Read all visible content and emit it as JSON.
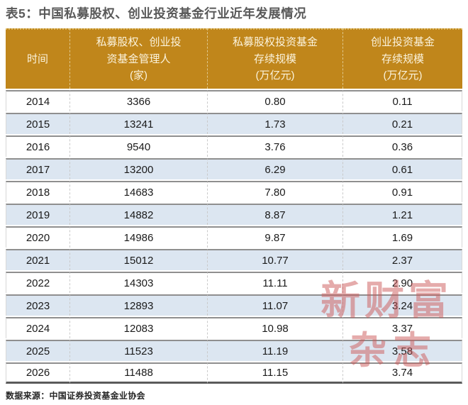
{
  "title": "表5：中国私募股权、创业投资基金行业近年发展情况",
  "source": "数据来源：中国证券投资基金业协会",
  "watermark": {
    "line1": "新财富",
    "line2": "杂志"
  },
  "colors": {
    "header_bg": "#C0861B",
    "header_text": "#FBF3DC",
    "alt_row_bg": "#DCE6F1",
    "title_text": "#595959",
    "row_border": "#8F8F8F",
    "watermark_red": "#CB5858"
  },
  "header": {
    "columns": [
      {
        "lines": [
          "时间"
        ]
      },
      {
        "lines": [
          "私募股权、创业投",
          "资基金管理人",
          "(家)"
        ]
      },
      {
        "lines": [
          "私募股权投资基金",
          "存续规模",
          "(万亿元)"
        ]
      },
      {
        "lines": [
          "创业投资基金",
          "存续规模",
          "(万亿元)"
        ]
      }
    ]
  },
  "chart_data": {
    "type": "table",
    "title": "表5：中国私募股权、创业投资基金行业近年发展情况",
    "columns": [
      "时间",
      "私募股权、创业投资基金管理人(家)",
      "私募股权投资基金存续规模(万亿元)",
      "创业投资基金存续规模(万亿元)"
    ],
    "rows": [
      [
        "2014",
        "3366",
        "0.80",
        "0.11"
      ],
      [
        "2015",
        "13241",
        "1.73",
        "0.21"
      ],
      [
        "2016",
        "9540",
        "3.76",
        "0.36"
      ],
      [
        "2017",
        "13200",
        "6.29",
        "0.61"
      ],
      [
        "2018",
        "14683",
        "7.80",
        "0.91"
      ],
      [
        "2019",
        "14882",
        "8.87",
        "1.21"
      ],
      [
        "2020",
        "14986",
        "9.87",
        "1.69"
      ],
      [
        "2021",
        "15012",
        "10.77",
        "2.37"
      ],
      [
        "2022",
        "14303",
        "11.11",
        "2.90"
      ],
      [
        "2023",
        "12893",
        "11.07",
        "3.24"
      ],
      [
        "2024",
        "12083",
        "10.98",
        "3.37"
      ],
      [
        "2025",
        "11523",
        "11.19",
        "3.58"
      ],
      [
        "2026",
        "11488",
        "11.15",
        "3.74"
      ]
    ]
  }
}
